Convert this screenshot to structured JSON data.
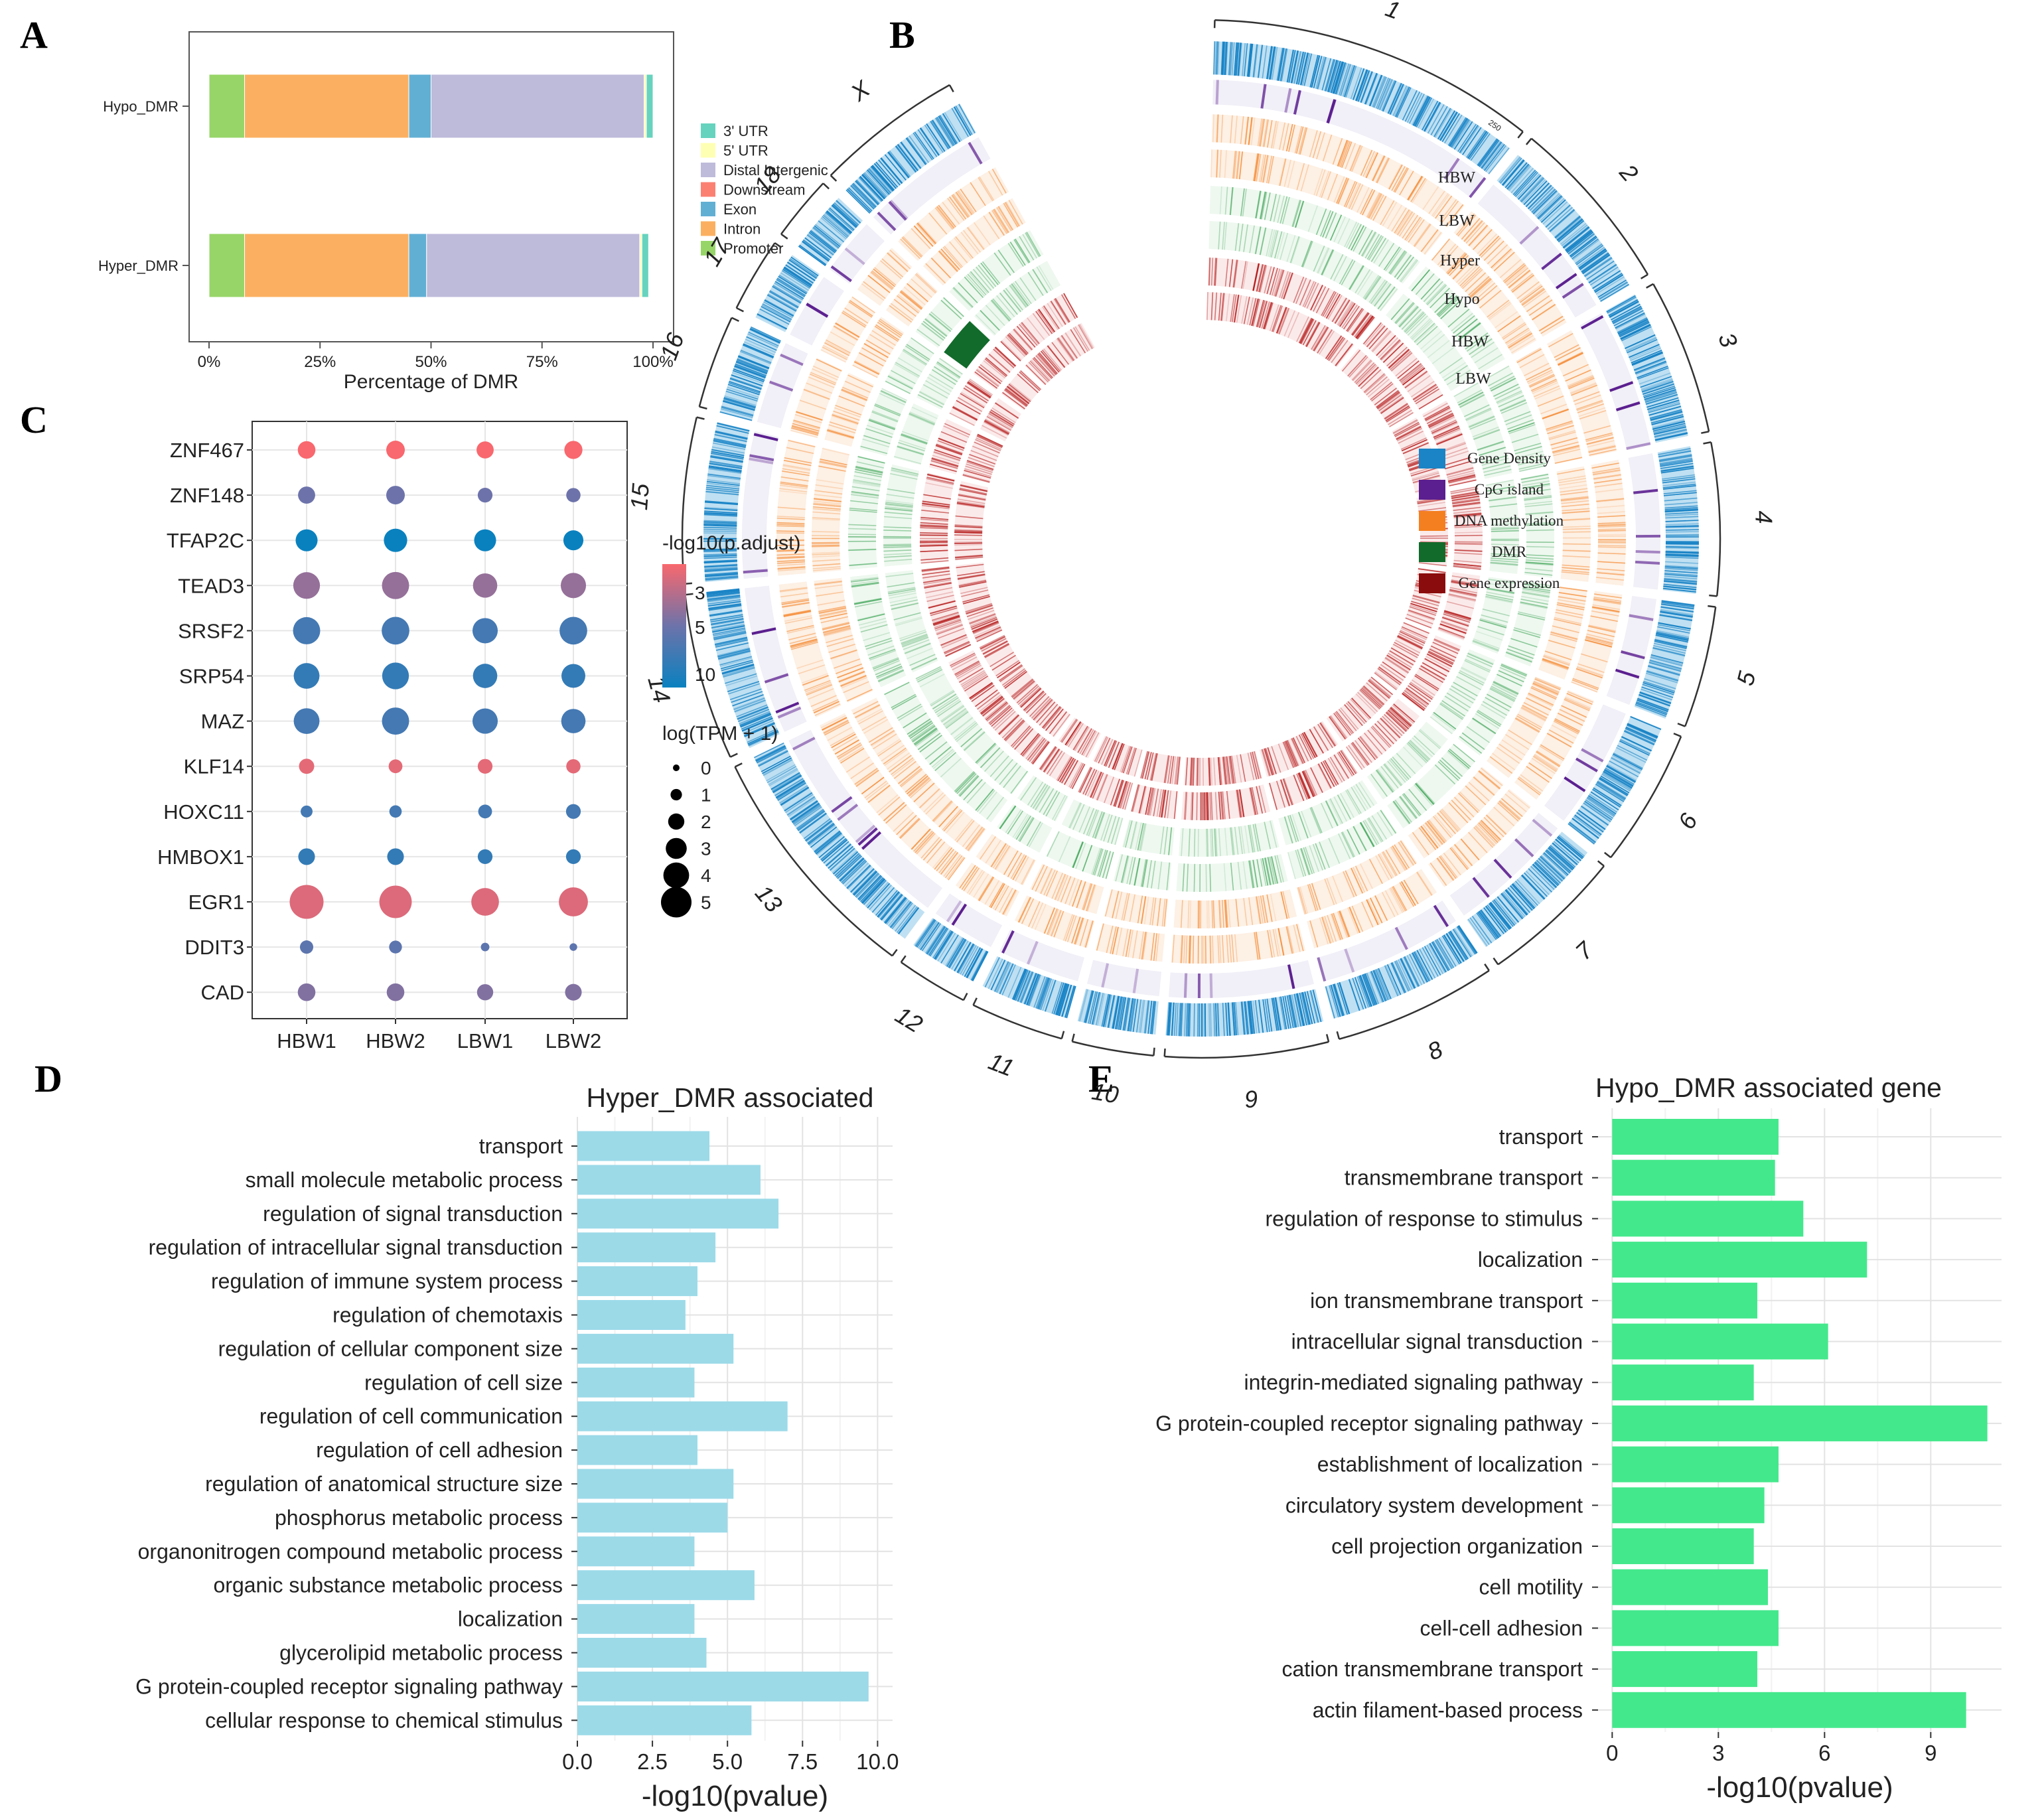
{
  "panel_labels": [
    "A",
    "B",
    "C",
    "D",
    "E"
  ],
  "chart_data": [
    {
      "id": "A",
      "type": "bar",
      "stacked": true,
      "horizontal": true,
      "categories": [
        "Hypo_DMR",
        "Hyper_DMR"
      ],
      "series": [
        {
          "name": "Promoter",
          "color": "#97d568",
          "values": [
            8,
            8
          ]
        },
        {
          "name": "Intron",
          "color": "#fbb061",
          "values": [
            37,
            37
          ]
        },
        {
          "name": "Exon",
          "color": "#62afd4",
          "values": [
            5,
            4
          ]
        },
        {
          "name": "Downstream",
          "color": "#fb8072",
          "values": [
            0,
            0
          ]
        },
        {
          "name": "Distal Intergenic",
          "color": "#bebada",
          "values": [
            48,
            48
          ]
        },
        {
          "name": "5' UTR",
          "color": "#ffffb3",
          "values": [
            0.5,
            0.5
          ]
        },
        {
          "name": "3' UTR",
          "color": "#66d3be",
          "values": [
            1.5,
            1.5
          ]
        }
      ],
      "legend_order": [
        "3' UTR",
        "5' UTR",
        "Distal Intergenic",
        "Downstream",
        "Exon",
        "Intron",
        "Promoter"
      ],
      "xlabel": "Percentage of DMR",
      "x_ticks": [
        "0%",
        "25%",
        "50%",
        "75%",
        "100%"
      ],
      "xlim": [
        0,
        100
      ],
      "legend_position": "right"
    },
    {
      "id": "B",
      "type": "circos",
      "chromosomes": [
        "1",
        "2",
        "3",
        "4",
        "5",
        "6",
        "7",
        "8",
        "9",
        "10",
        "11",
        "12",
        "13",
        "14",
        "15",
        "16",
        "17",
        "18",
        "X"
      ],
      "chromosome_sizes": [
        278,
        150,
        132,
        129,
        103,
        117,
        121,
        138,
        138,
        69,
        79,
        61,
        207,
        141,
        140,
        79,
        63,
        55,
        125
      ],
      "ring_labels": [
        "HBW",
        "LBW",
        "Hyper",
        "Hypo",
        "HBW",
        "LBW"
      ],
      "scale_tick_label": "250",
      "tracks": [
        {
          "name": "Gene Density",
          "color": "#1a84c6"
        },
        {
          "name": "CpG island",
          "color": "#5b1f8f"
        },
        {
          "name": "DNA methylation",
          "color": "#f47f20"
        },
        {
          "name": "DMR",
          "color": "#126b2b"
        },
        {
          "name": "Gene expression",
          "color": "#8b0c0c"
        }
      ]
    },
    {
      "id": "C",
      "type": "scatter",
      "subtype": "dot plot",
      "y_categories": [
        "ZNF467",
        "ZNF148",
        "TFAP2C",
        "TEAD3",
        "SRSF2",
        "SRP54",
        "MAZ",
        "KLF14",
        "HOXC11",
        "HMBOX1",
        "EGR1",
        "DDIT3",
        "CAD"
      ],
      "x_categories": [
        "HBW1",
        "HBW2",
        "LBW1",
        "LBW2"
      ],
      "neg_log10_padj": [
        2.5,
        6.0,
        12.0,
        5.0,
        8.5,
        9.5,
        8.5,
        3.0,
        8.5,
        9.5,
        3.2,
        7.0,
        5.5
      ],
      "log_tpm": [
        [
          2.3,
          2.5,
          2.2,
          2.4
        ],
        [
          2.2,
          2.5,
          1.7,
          1.6
        ],
        [
          3.2,
          3.5,
          3.2,
          2.8
        ],
        [
          4.2,
          4.3,
          3.7,
          3.9
        ],
        [
          4.3,
          4.4,
          3.9,
          4.4
        ],
        [
          4.0,
          4.2,
          3.7,
          3.6
        ],
        [
          4.0,
          4.3,
          3.9,
          3.7
        ],
        [
          1.8,
          1.5,
          1.7,
          1.6
        ],
        [
          1.1,
          1.2,
          1.5,
          1.7
        ],
        [
          2.1,
          2.1,
          1.7,
          1.7
        ],
        [
          5.7,
          5.4,
          4.4,
          4.7
        ],
        [
          1.4,
          1.3,
          0.4,
          0.2
        ],
        [
          2.3,
          2.3,
          2.0,
          2.1
        ]
      ],
      "color_legend": {
        "title": "-log10(p.adjust)",
        "ticks": [
          "3",
          "5",
          "10"
        ],
        "colors": [
          "#f8686e",
          "#6d73aa",
          "#0a81bf"
        ]
      },
      "size_legend": {
        "title": "log(TPM + 1)",
        "ticks": [
          "0",
          "1",
          "2",
          "3",
          "4",
          "5"
        ]
      }
    },
    {
      "id": "D",
      "type": "bar",
      "horizontal": true,
      "title": "Hyper_DMR associated",
      "color": "#9cdae8",
      "categories": [
        "transport",
        "small molecule metabolic process",
        "regulation of signal transduction",
        "regulation of intracellular signal transduction",
        "regulation of immune system process",
        "regulation of chemotaxis",
        "regulation of cellular component size",
        "regulation of cell size",
        "regulation of cell communication",
        "regulation of cell adhesion",
        "regulation of anatomical structure size",
        "phosphorus metabolic process",
        "organonitrogen compound metabolic process",
        "organic substance metabolic process",
        "localization",
        "glycerolipid metabolic process",
        "G protein-coupled receptor signaling pathway",
        "cellular response to chemical stimulus"
      ],
      "values": [
        4.4,
        6.1,
        6.7,
        4.6,
        4.0,
        3.6,
        5.2,
        3.9,
        7.0,
        4.0,
        5.2,
        5.0,
        3.9,
        5.9,
        3.9,
        4.3,
        9.7,
        5.8
      ],
      "xlabel": "-log10(pvalue)",
      "x_ticks": [
        "0.0",
        "2.5",
        "5.0",
        "7.5",
        "10.0"
      ],
      "xlim": [
        0,
        10.5
      ]
    },
    {
      "id": "E",
      "type": "bar",
      "horizontal": true,
      "title": "Hypo_DMR associated gene",
      "color": "#44e88c",
      "categories": [
        "transport",
        "transmembrane transport",
        "regulation of response to stimulus",
        "localization",
        "ion transmembrane transport",
        "intracellular signal transduction",
        "integrin-mediated signaling pathway",
        "G protein-coupled receptor signaling pathway",
        "establishment of localization",
        "circulatory system development",
        "cell projection organization",
        "cell motility",
        "cell-cell adhesion",
        "cation transmembrane transport",
        "actin filament-based process"
      ],
      "values": [
        4.7,
        4.6,
        5.4,
        7.2,
        4.1,
        6.1,
        4.0,
        10.6,
        4.7,
        4.3,
        4.0,
        4.4,
        4.7,
        4.1,
        10.0
      ],
      "xlabel": "-log10(pvalue)",
      "x_ticks": [
        "0",
        "3",
        "6",
        "9"
      ],
      "xlim": [
        -0.4,
        11
      ]
    }
  ]
}
